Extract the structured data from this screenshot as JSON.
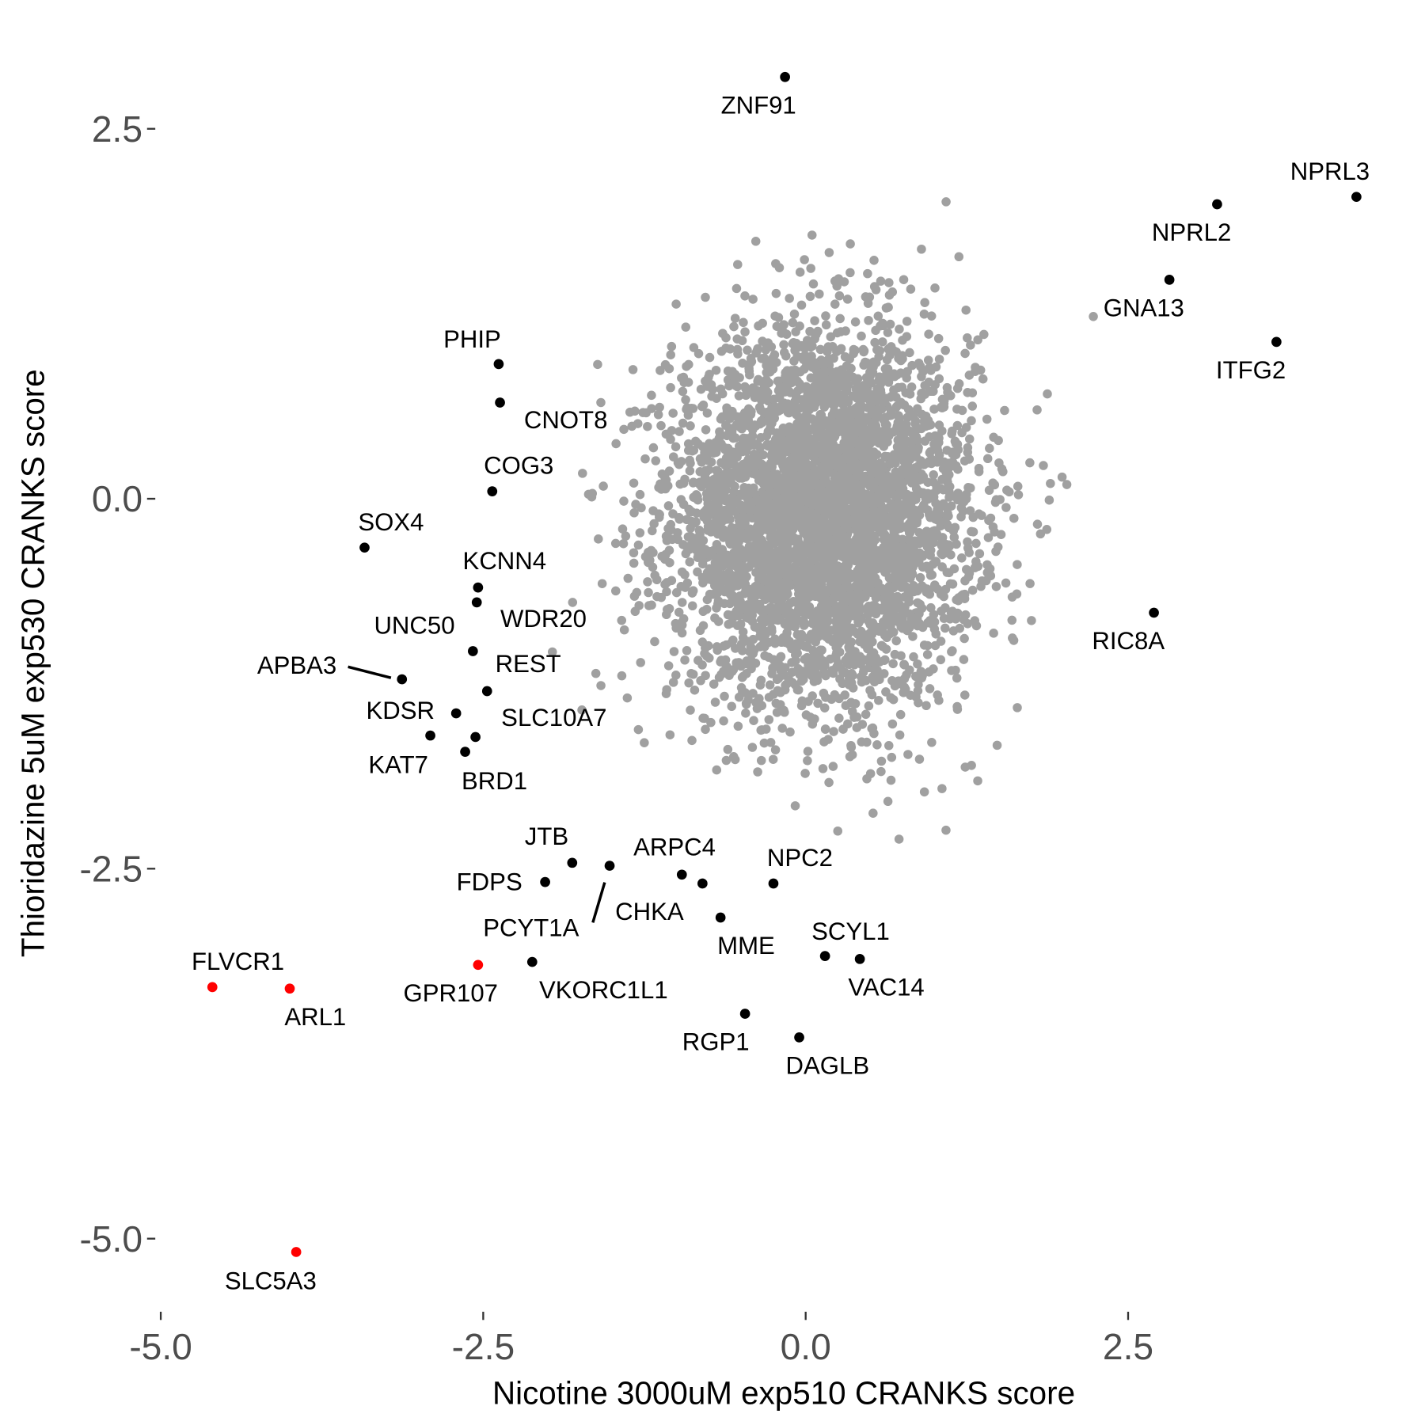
{
  "chart_data": {
    "type": "scatter",
    "title": "",
    "xlabel": "Nicotine 3000uM exp510 CRANKS score",
    "ylabel": "Thioridazine 5uM exp530 CRANKS score",
    "xlim": [
      -5.05,
      4.45
    ],
    "ylim": [
      -5.4,
      3.1
    ],
    "x_ticks": [
      "-5.0",
      "-2.5",
      "0.0",
      "2.5"
    ],
    "x_tick_values": [
      -5.0,
      -2.5,
      0.0,
      2.5
    ],
    "y_ticks": [
      "2.5",
      "0.0",
      "-2.5",
      "-5.0"
    ],
    "y_tick_values": [
      2.5,
      0.0,
      -2.5,
      -5.0
    ],
    "grid": false,
    "legend": "none",
    "colors": {
      "background": "#A0A0A0",
      "labeled": "#000000",
      "highlighted": "#FF0000"
    },
    "background_cloud": {
      "color": "#A0A0A0",
      "center": [
        0.13,
        -0.12
      ],
      "spread": [
        0.58,
        0.62
      ]
    },
    "labeled_points": [
      {
        "label": "ZNF91",
        "x": -0.16,
        "y": 2.85,
        "color": "#000000"
      },
      {
        "label": "NPRL3",
        "x": 4.27,
        "y": 2.04,
        "color": "#000000"
      },
      {
        "label": "NPRL2",
        "x": 3.19,
        "y": 1.99,
        "color": "#000000"
      },
      {
        "label": "GNA13",
        "x": 2.82,
        "y": 1.48,
        "color": "#000000"
      },
      {
        "label": "ITFG2",
        "x": 3.65,
        "y": 1.06,
        "color": "#000000"
      },
      {
        "label": "PHIP",
        "x": -2.38,
        "y": 0.91,
        "color": "#000000"
      },
      {
        "label": "CNOT8",
        "x": -2.37,
        "y": 0.65,
        "color": "#000000"
      },
      {
        "label": "COG3",
        "x": -2.43,
        "y": 0.05,
        "color": "#000000"
      },
      {
        "label": "SOX4",
        "x": -3.42,
        "y": -0.33,
        "color": "#000000"
      },
      {
        "label": "KCNN4",
        "x": -2.54,
        "y": -0.6,
        "color": "#000000"
      },
      {
        "label": "WDR20",
        "x": -2.55,
        "y": -0.7,
        "color": "#000000"
      },
      {
        "label": "UNC50",
        "x": -2.58,
        "y": -1.03,
        "color": "#000000"
      },
      {
        "label": "APBA3",
        "x": -3.13,
        "y": -1.22,
        "color": "#000000"
      },
      {
        "label": "REST",
        "x": -2.47,
        "y": -1.3,
        "color": "#000000"
      },
      {
        "label": "KDSR",
        "x": -2.71,
        "y": -1.45,
        "color": "#000000"
      },
      {
        "label": "SLC10A7",
        "x": -2.56,
        "y": -1.61,
        "color": "#000000"
      },
      {
        "label": "KAT7",
        "x": -2.91,
        "y": -1.6,
        "color": "#000000"
      },
      {
        "label": "BRD1",
        "x": -2.64,
        "y": -1.71,
        "color": "#000000"
      },
      {
        "label": "RIC8A",
        "x": 2.7,
        "y": -0.77,
        "color": "#000000"
      },
      {
        "label": "JTB",
        "x": -1.81,
        "y": -2.46,
        "color": "#000000"
      },
      {
        "label": "ARPC4",
        "x": -0.96,
        "y": -2.54,
        "color": "#000000"
      },
      {
        "label": "FDPS",
        "x": -2.02,
        "y": -2.59,
        "color": "#000000"
      },
      {
        "label": "PCYT1A",
        "x": -1.52,
        "y": -2.48,
        "color": "#000000"
      },
      {
        "label": "CHKA",
        "x": -0.8,
        "y": -2.6,
        "color": "#000000"
      },
      {
        "label": "NPC2",
        "x": -0.25,
        "y": -2.6,
        "color": "#000000"
      },
      {
        "label": "MME",
        "x": -0.66,
        "y": -2.83,
        "color": "#000000"
      },
      {
        "label": "SCYL1",
        "x": 0.15,
        "y": -3.09,
        "color": "#000000"
      },
      {
        "label": "VAC14",
        "x": 0.42,
        "y": -3.11,
        "color": "#000000"
      },
      {
        "label": "VKORC1L1",
        "x": -2.12,
        "y": -3.13,
        "color": "#000000"
      },
      {
        "label": "GPR107",
        "x": -2.54,
        "y": -3.15,
        "color": "#FF0000"
      },
      {
        "label": "FLVCR1",
        "x": -4.6,
        "y": -3.3,
        "color": "#FF0000"
      },
      {
        "label": "ARL1",
        "x": -4.0,
        "y": -3.31,
        "color": "#FF0000"
      },
      {
        "label": "SLC5A3",
        "x": -3.95,
        "y": -5.09,
        "color": "#FF0000"
      },
      {
        "label": "RGP1",
        "x": -0.47,
        "y": -3.48,
        "color": "#000000"
      },
      {
        "label": "DAGLB",
        "x": -0.05,
        "y": -3.64,
        "color": "#000000"
      }
    ]
  }
}
